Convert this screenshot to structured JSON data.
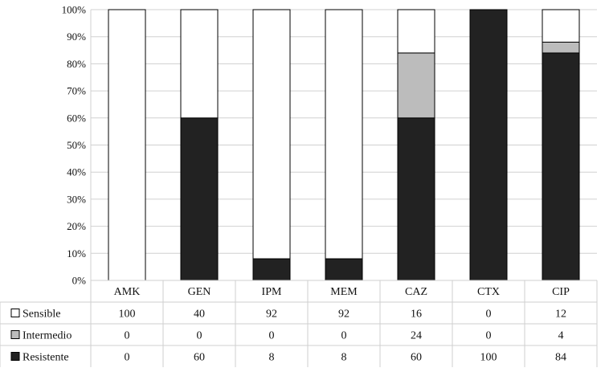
{
  "chart_data": {
    "type": "bar",
    "stacked": true,
    "percent": true,
    "categories": [
      "AMK",
      "GEN",
      "IPM",
      "MEM",
      "CAZ",
      "CTX",
      "CIP"
    ],
    "ylim": [
      0,
      100
    ],
    "y_ticks": [
      "0%",
      "10%",
      "20%",
      "30%",
      "40%",
      "50%",
      "60%",
      "70%",
      "80%",
      "90%",
      "100%"
    ],
    "grid": true,
    "legend": "data-table",
    "series": [
      {
        "name": "Resistente",
        "color": "#222222",
        "values": [
          0,
          60,
          8,
          8,
          60,
          100,
          84
        ]
      },
      {
        "name": "Intermedio",
        "color": "#bcbcbc",
        "values": [
          0,
          0,
          0,
          0,
          24,
          0,
          4
        ]
      },
      {
        "name": "Sensible",
        "color": "#ffffff",
        "values": [
          100,
          40,
          92,
          92,
          16,
          0,
          12
        ]
      }
    ],
    "table_rows": [
      "Sensible",
      "Intermedio",
      "Resistente"
    ]
  }
}
